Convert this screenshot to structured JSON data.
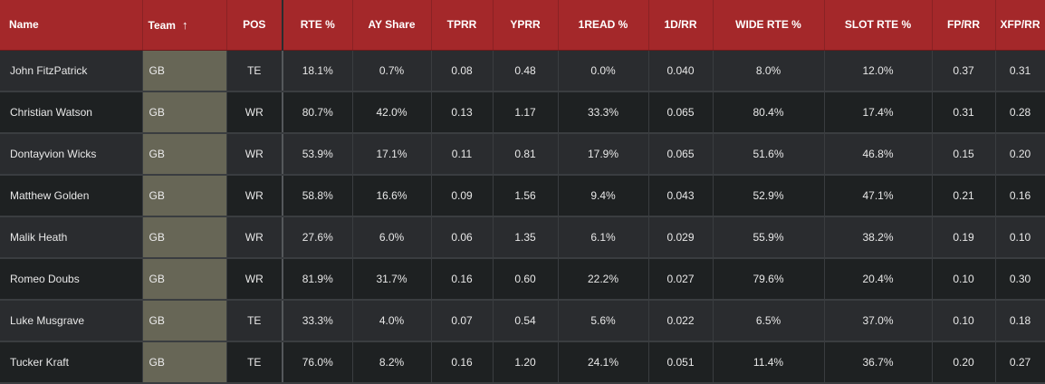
{
  "headers": {
    "name": "Name",
    "team": "Team",
    "team_sort_icon": "arrow-up-icon",
    "pos": "POS",
    "rte": "RTE %",
    "ay_share": "AY Share",
    "tprr": "TPRR",
    "yprr": "YPRR",
    "first_read": "1READ %",
    "d1_rr": "1D/RR",
    "wide_rte": "WIDE RTE %",
    "slot_rte": "SLOT RTE %",
    "fp_rr": "FP/RR",
    "xfp_rr": "XFP/RR"
  },
  "rows": [
    {
      "name": "John FitzPatrick",
      "team": "GB",
      "pos": "TE",
      "rte": "18.1%",
      "ay_share": "0.7%",
      "tprr": "0.08",
      "yprr": "0.48",
      "first_read": "0.0%",
      "d1_rr": "0.040",
      "wide_rte": "8.0%",
      "slot_rte": "12.0%",
      "fp_rr": "0.37",
      "xfp_rr": "0.31"
    },
    {
      "name": "Christian Watson",
      "team": "GB",
      "pos": "WR",
      "rte": "80.7%",
      "ay_share": "42.0%",
      "tprr": "0.13",
      "yprr": "1.17",
      "first_read": "33.3%",
      "d1_rr": "0.065",
      "wide_rte": "80.4%",
      "slot_rte": "17.4%",
      "fp_rr": "0.31",
      "xfp_rr": "0.28"
    },
    {
      "name": "Dontayvion Wicks",
      "team": "GB",
      "pos": "WR",
      "rte": "53.9%",
      "ay_share": "17.1%",
      "tprr": "0.11",
      "yprr": "0.81",
      "first_read": "17.9%",
      "d1_rr": "0.065",
      "wide_rte": "51.6%",
      "slot_rte": "46.8%",
      "fp_rr": "0.15",
      "xfp_rr": "0.20"
    },
    {
      "name": "Matthew Golden",
      "team": "GB",
      "pos": "WR",
      "rte": "58.8%",
      "ay_share": "16.6%",
      "tprr": "0.09",
      "yprr": "1.56",
      "first_read": "9.4%",
      "d1_rr": "0.043",
      "wide_rte": "52.9%",
      "slot_rte": "47.1%",
      "fp_rr": "0.21",
      "xfp_rr": "0.16"
    },
    {
      "name": "Malik Heath",
      "team": "GB",
      "pos": "WR",
      "rte": "27.6%",
      "ay_share": "6.0%",
      "tprr": "0.06",
      "yprr": "1.35",
      "first_read": "6.1%",
      "d1_rr": "0.029",
      "wide_rte": "55.9%",
      "slot_rte": "38.2%",
      "fp_rr": "0.19",
      "xfp_rr": "0.10"
    },
    {
      "name": "Romeo Doubs",
      "team": "GB",
      "pos": "WR",
      "rte": "81.9%",
      "ay_share": "31.7%",
      "tprr": "0.16",
      "yprr": "0.60",
      "first_read": "22.2%",
      "d1_rr": "0.027",
      "wide_rte": "79.6%",
      "slot_rte": "20.4%",
      "fp_rr": "0.10",
      "xfp_rr": "0.30"
    },
    {
      "name": "Luke Musgrave",
      "team": "GB",
      "pos": "TE",
      "rte": "33.3%",
      "ay_share": "4.0%",
      "tprr": "0.07",
      "yprr": "0.54",
      "first_read": "5.6%",
      "d1_rr": "0.022",
      "wide_rte": "6.5%",
      "slot_rte": "37.0%",
      "fp_rr": "0.10",
      "xfp_rr": "0.18"
    },
    {
      "name": "Tucker Kraft",
      "team": "GB",
      "pos": "TE",
      "rte": "76.0%",
      "ay_share": "8.2%",
      "tprr": "0.16",
      "yprr": "1.20",
      "first_read": "24.1%",
      "d1_rr": "0.051",
      "wide_rte": "11.4%",
      "slot_rte": "36.7%",
      "fp_rr": "0.20",
      "xfp_rr": "0.27"
    }
  ]
}
